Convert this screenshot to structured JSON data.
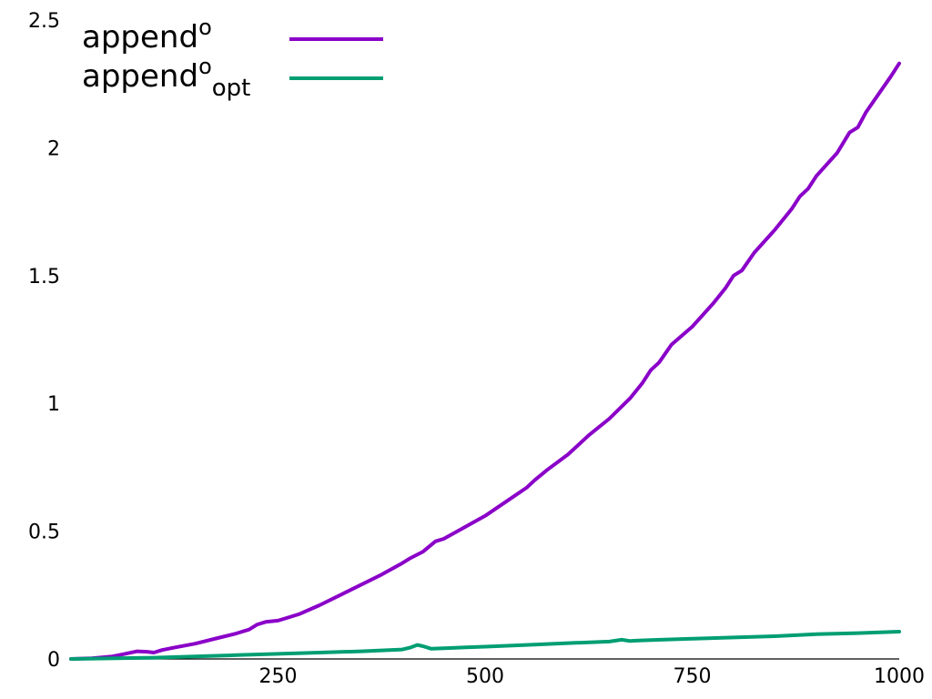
{
  "chart_data": {
    "type": "line",
    "title": "",
    "xlabel": "",
    "ylabel": "",
    "xlim": [
      0,
      1000
    ],
    "ylim": [
      0,
      2.5
    ],
    "grid": false,
    "legend_position": "top-left",
    "x_ticks": [
      {
        "value": 250,
        "label": "250"
      },
      {
        "value": 500,
        "label": "500"
      },
      {
        "value": 750,
        "label": "750"
      },
      {
        "value": 1000,
        "label": "1000"
      }
    ],
    "y_ticks": [
      {
        "value": 0,
        "label": "0"
      },
      {
        "value": 0.5,
        "label": "0.5"
      },
      {
        "value": 1,
        "label": "1"
      },
      {
        "value": 1.5,
        "label": "1.5"
      },
      {
        "value": 2,
        "label": "2"
      },
      {
        "value": 2.5,
        "label": "2.5"
      }
    ],
    "series": [
      {
        "name": "append",
        "name_superscript": "o",
        "name_subscript": "",
        "color": "#8a00c8",
        "points": [
          [
            0,
            0
          ],
          [
            25,
            0.003
          ],
          [
            50,
            0.01
          ],
          [
            65,
            0.02
          ],
          [
            80,
            0.03
          ],
          [
            92,
            0.028
          ],
          [
            100,
            0.025
          ],
          [
            110,
            0.035
          ],
          [
            125,
            0.045
          ],
          [
            150,
            0.06
          ],
          [
            175,
            0.08
          ],
          [
            200,
            0.1
          ],
          [
            215,
            0.115
          ],
          [
            225,
            0.135
          ],
          [
            235,
            0.145
          ],
          [
            250,
            0.15
          ],
          [
            275,
            0.175
          ],
          [
            300,
            0.21
          ],
          [
            325,
            0.25
          ],
          [
            350,
            0.29
          ],
          [
            375,
            0.33
          ],
          [
            400,
            0.375
          ],
          [
            410,
            0.395
          ],
          [
            425,
            0.42
          ],
          [
            440,
            0.46
          ],
          [
            450,
            0.47
          ],
          [
            475,
            0.515
          ],
          [
            500,
            0.56
          ],
          [
            525,
            0.615
          ],
          [
            550,
            0.67
          ],
          [
            560,
            0.7
          ],
          [
            575,
            0.74
          ],
          [
            600,
            0.8
          ],
          [
            625,
            0.875
          ],
          [
            650,
            0.94
          ],
          [
            675,
            1.02
          ],
          [
            690,
            1.08
          ],
          [
            700,
            1.13
          ],
          [
            710,
            1.16
          ],
          [
            725,
            1.23
          ],
          [
            750,
            1.3
          ],
          [
            775,
            1.39
          ],
          [
            790,
            1.45
          ],
          [
            800,
            1.5
          ],
          [
            810,
            1.52
          ],
          [
            825,
            1.59
          ],
          [
            850,
            1.68
          ],
          [
            870,
            1.76
          ],
          [
            880,
            1.81
          ],
          [
            890,
            1.84
          ],
          [
            900,
            1.89
          ],
          [
            925,
            1.98
          ],
          [
            940,
            2.06
          ],
          [
            950,
            2.08
          ],
          [
            960,
            2.14
          ],
          [
            975,
            2.21
          ],
          [
            990,
            2.28
          ],
          [
            1000,
            2.33
          ]
        ]
      },
      {
        "name": "append",
        "name_superscript": "o",
        "name_subscript": "opt",
        "color": "#009e73",
        "points": [
          [
            0,
            0
          ],
          [
            100,
            0.005
          ],
          [
            200,
            0.015
          ],
          [
            300,
            0.025
          ],
          [
            350,
            0.03
          ],
          [
            400,
            0.037
          ],
          [
            410,
            0.045
          ],
          [
            418,
            0.055
          ],
          [
            425,
            0.05
          ],
          [
            435,
            0.04
          ],
          [
            450,
            0.042
          ],
          [
            500,
            0.048
          ],
          [
            550,
            0.055
          ],
          [
            600,
            0.062
          ],
          [
            650,
            0.068
          ],
          [
            665,
            0.075
          ],
          [
            675,
            0.07
          ],
          [
            685,
            0.072
          ],
          [
            700,
            0.074
          ],
          [
            750,
            0.079
          ],
          [
            800,
            0.084
          ],
          [
            850,
            0.089
          ],
          [
            900,
            0.097
          ],
          [
            950,
            0.101
          ],
          [
            1000,
            0.107
          ]
        ]
      }
    ]
  }
}
